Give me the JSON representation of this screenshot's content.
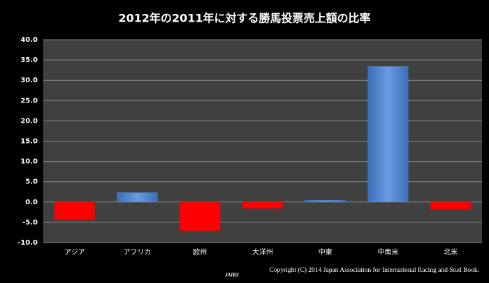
{
  "chart_data": {
    "type": "bar",
    "title": "2012年の2011年に対する勝馬投票売上額の比率",
    "categories": [
      "アジア",
      "アフリカ",
      "欧州",
      "大洋州",
      "中東",
      "中南米",
      "北米"
    ],
    "values": [
      -4.3,
      2.3,
      -7.1,
      -1.6,
      0.4,
      33.4,
      -1.8
    ],
    "colors": [
      "#ff0000",
      "#4f86d0",
      "#ff0000",
      "#ff0000",
      "#4f86d0",
      "#4f86d0",
      "#ff0000"
    ],
    "ylim": [
      -10,
      40
    ],
    "yticks": [
      {
        "value": -10,
        "label": "-10.0"
      },
      {
        "value": -5,
        "label": "-5.0"
      },
      {
        "value": 0,
        "label": "0.0"
      },
      {
        "value": 5,
        "label": "5.0"
      },
      {
        "value": 10,
        "label": "10.0"
      },
      {
        "value": 15,
        "label": "15.0"
      },
      {
        "value": 20,
        "label": "20.0"
      },
      {
        "value": 25,
        "label": "25.0"
      },
      {
        "value": 30,
        "label": "30.0"
      },
      {
        "value": 35,
        "label": "35.0"
      },
      {
        "value": 40,
        "label": "40.0"
      }
    ],
    "grid": true,
    "logo": "JAIRS",
    "footnote": "Copyright (C) 2014 Japan Association for International Racing and Stud Book."
  }
}
